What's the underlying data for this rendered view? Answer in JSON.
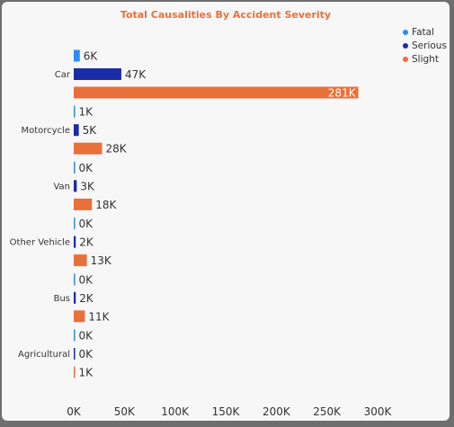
{
  "chart_data": {
    "type": "bar",
    "orientation": "horizontal",
    "title": "Total Causalities By Accident Severity",
    "categories": [
      "Car",
      "Motorcycle",
      "Van",
      "Other Vehicle",
      "Bus",
      "Agricultural"
    ],
    "series": [
      {
        "name": "Fatal",
        "color": "#2b8cf5",
        "values": [
          6000,
          1000,
          300,
          300,
          300,
          100
        ],
        "labels": [
          "6K",
          "1K",
          "0K",
          "0K",
          "0K",
          "0K"
        ]
      },
      {
        "name": "Serious",
        "color": "#1b2ca8",
        "values": [
          47000,
          5000,
          3000,
          2000,
          2000,
          300
        ],
        "labels": [
          "47K",
          "5K",
          "3K",
          "2K",
          "2K",
          "0K"
        ]
      },
      {
        "name": "Slight",
        "color": "#e8703a",
        "values": [
          281000,
          28000,
          18000,
          13000,
          11000,
          1000
        ],
        "labels": [
          "281K",
          "28K",
          "18K",
          "13K",
          "11K",
          "1K"
        ]
      }
    ],
    "xlim": [
      0,
      300000
    ],
    "x_ticks": [
      0,
      50000,
      100000,
      150000,
      200000,
      250000,
      300000
    ],
    "x_tick_labels": [
      "0K",
      "50K",
      "100K",
      "150K",
      "200K",
      "250K",
      "300K"
    ],
    "legend_position": "top-right",
    "grid": false
  }
}
